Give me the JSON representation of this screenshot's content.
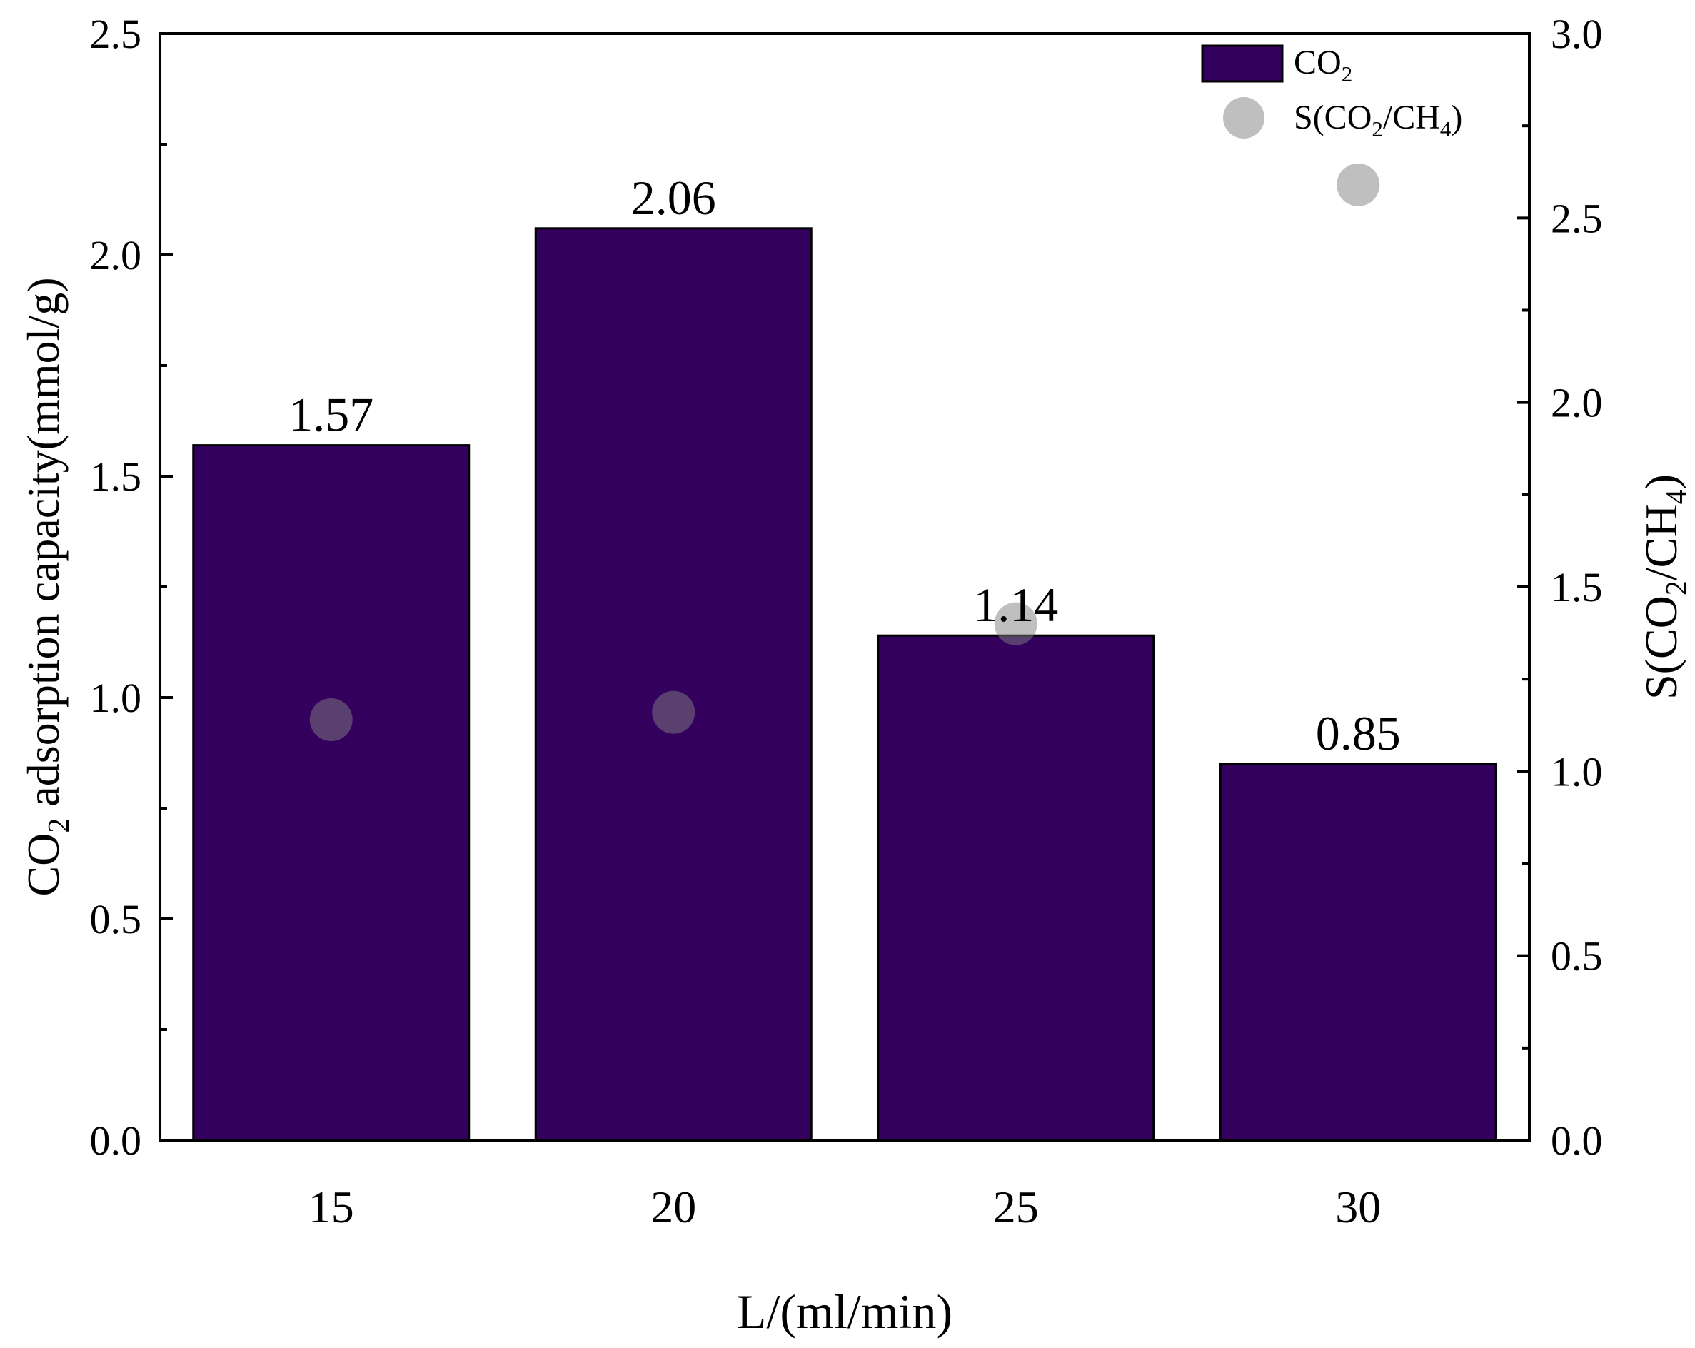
{
  "chart_data": {
    "type": "bar",
    "title": "",
    "xlabel": "L/(ml/min)",
    "ylabel": {
      "prefix": "CO",
      "sub": "2",
      "suffix": " adsorption capacity(mmol/g)"
    },
    "y2label": {
      "parts": [
        {
          "t": "S(CO",
          "sub": false
        },
        {
          "t": "2",
          "sub": true
        },
        {
          "t": "/CH",
          "sub": false
        },
        {
          "t": "4",
          "sub": true
        },
        {
          "t": ")",
          "sub": false
        }
      ]
    },
    "categories": [
      "15",
      "20",
      "25",
      "30"
    ],
    "ylim": [
      0,
      2.5
    ],
    "y2lim": [
      0,
      3.0
    ],
    "yticks": [
      "0.0",
      "0.5",
      "1.0",
      "1.5",
      "2.0",
      "2.5"
    ],
    "y2ticks": [
      "0.0",
      "0.5",
      "1.0",
      "1.5",
      "2.0",
      "2.5",
      "3.0"
    ],
    "series": [
      {
        "name": "CO2",
        "type": "bar",
        "axis": "left",
        "values": [
          1.57,
          2.06,
          1.14,
          0.85
        ],
        "labels": [
          "1.57",
          "2.06",
          "1.14",
          "0.85"
        ],
        "color": "#33005e"
      },
      {
        "name": "S(CO2/CH4)",
        "type": "scatter",
        "axis": "right",
        "values": [
          1.14,
          1.16,
          1.4,
          2.59
        ],
        "color": "#808080"
      }
    ],
    "legend": {
      "position": "top-right",
      "items": [
        {
          "parts": [
            {
              "t": "CO",
              "sub": false
            },
            {
              "t": "2",
              "sub": true
            }
          ]
        },
        {
          "parts": [
            {
              "t": "S(CO",
              "sub": false
            },
            {
              "t": "2",
              "sub": true
            },
            {
              "t": "/CH",
              "sub": false
            },
            {
              "t": "4",
              "sub": true
            },
            {
              "t": ")",
              "sub": false
            }
          ]
        }
      ]
    }
  }
}
